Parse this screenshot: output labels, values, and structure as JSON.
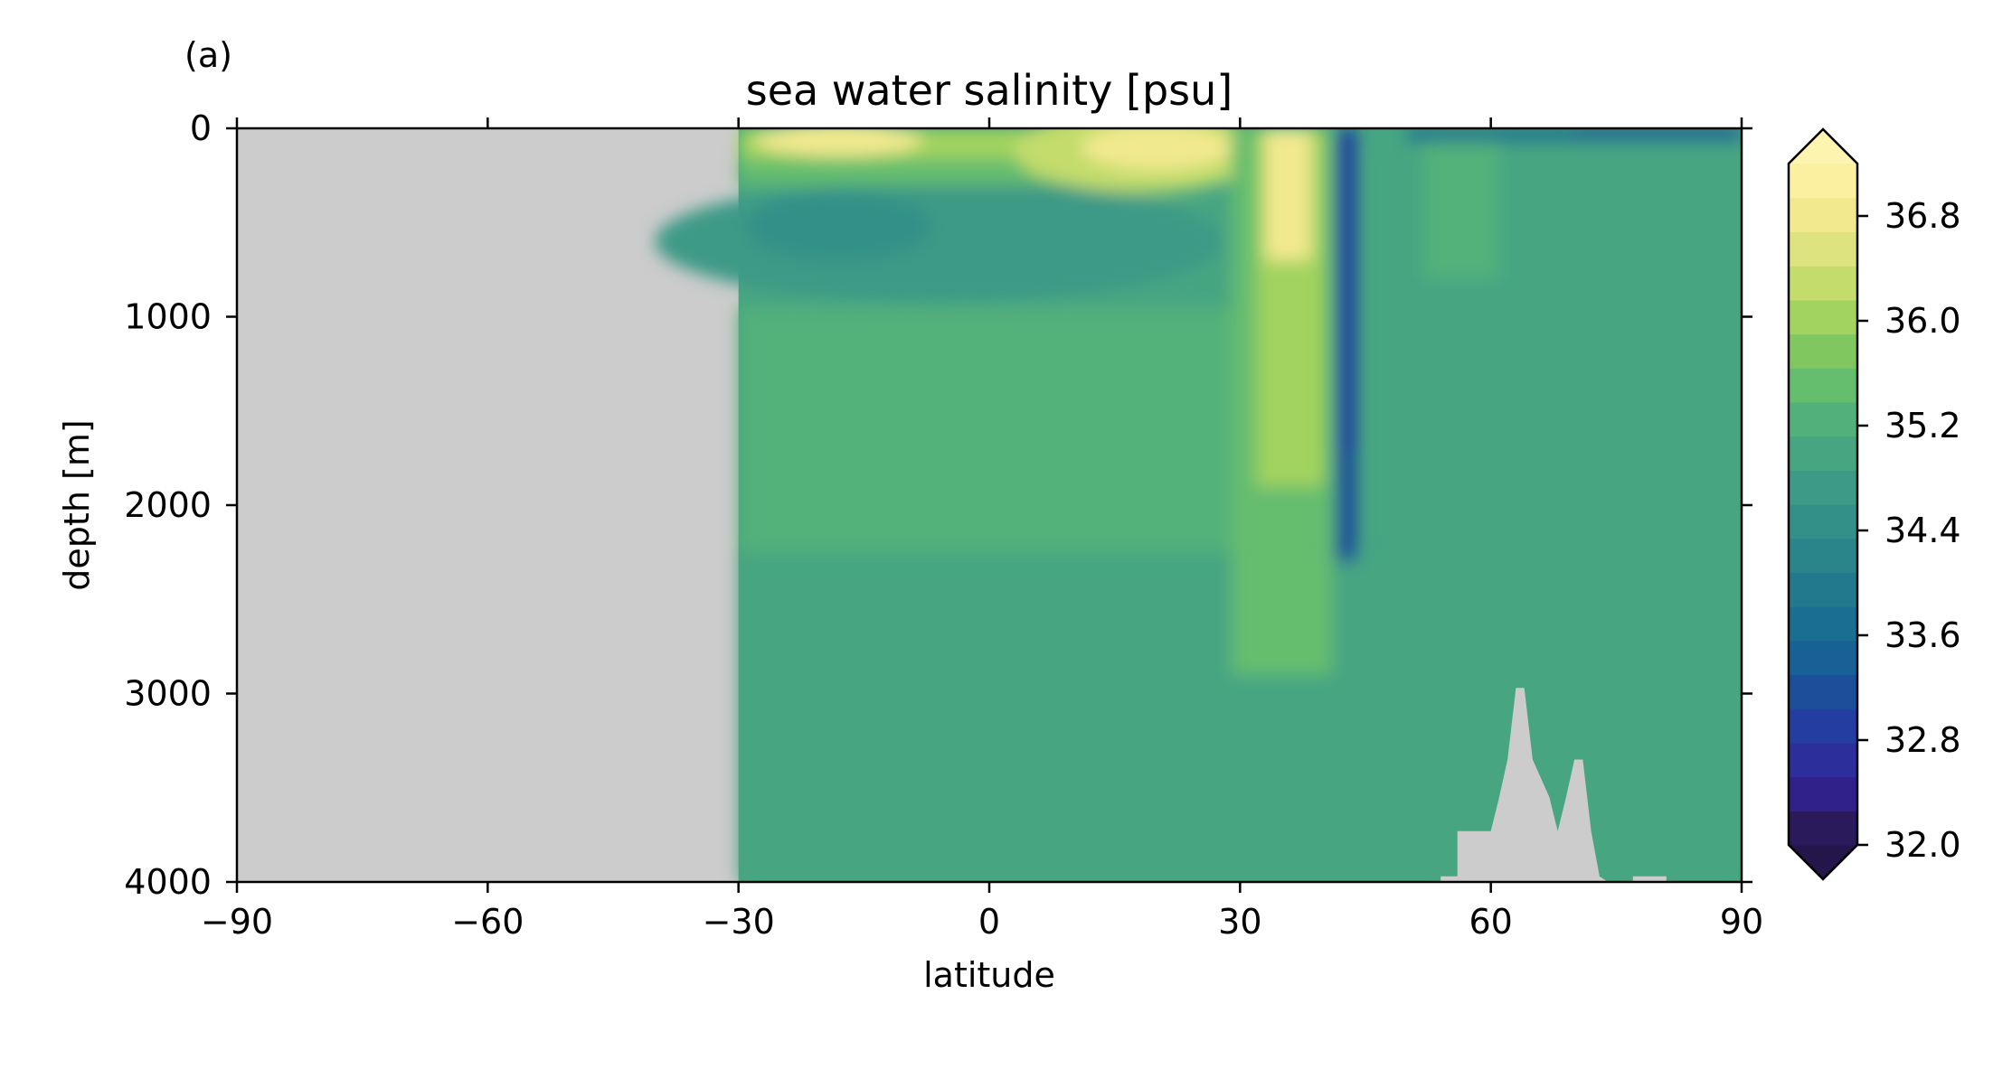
{
  "panel_label": "(a)",
  "chart_data": {
    "type": "heatmap",
    "title": "sea water salinity [psu]",
    "xlabel": "latitude",
    "ylabel": "depth [m]",
    "xlim": [
      -90,
      90
    ],
    "ylim": [
      0,
      4000
    ],
    "y_inverted": true,
    "xticks": [
      -90,
      -60,
      -30,
      0,
      30,
      60,
      90
    ],
    "xtick_labels": [
      "−90",
      "−60",
      "−30",
      "0",
      "30",
      "60",
      "90"
    ],
    "yticks": [
      0,
      1000,
      2000,
      3000,
      4000
    ],
    "ytick_labels": [
      "0",
      "1000",
      "2000",
      "3000",
      "4000"
    ],
    "colorbar": {
      "range": [
        32.0,
        37.2
      ],
      "extend": "both",
      "ticks": [
        32.0,
        32.8,
        33.6,
        34.4,
        35.2,
        36.0,
        36.8
      ],
      "tick_labels": [
        "32.0",
        "32.8",
        "33.6",
        "34.4",
        "35.2",
        "36.0",
        "36.8"
      ],
      "colors": [
        "#2a1a5c",
        "#30208a",
        "#2c2e9c",
        "#233ea0",
        "#1b4f9a",
        "#176196",
        "#1a6e90",
        "#22788c",
        "#2a858a",
        "#339088",
        "#3d9a86",
        "#47a582",
        "#52b17a",
        "#65bd6e",
        "#80c760",
        "#a2d35e",
        "#c3dc6c",
        "#dde37f",
        "#f2e98e",
        "#fbf0a0"
      ],
      "over_color": "#fdf4b0",
      "under_color": "#24154a"
    },
    "land_color": "#cccccc",
    "data_lat_min": -30,
    "bottom_topography_lat": [
      54,
      56,
      56,
      60,
      61,
      62,
      63,
      64,
      65,
      67,
      68,
      69,
      70,
      71,
      72,
      73,
      74,
      77,
      77,
      81,
      81
    ],
    "bottom_topography_depth": [
      3970,
      3970,
      3730,
      3730,
      3550,
      3350,
      2970,
      2970,
      3350,
      3550,
      3730,
      3550,
      3350,
      3350,
      3730,
      3970,
      4000,
      4000,
      3970,
      3970,
      4000
    ]
  }
}
